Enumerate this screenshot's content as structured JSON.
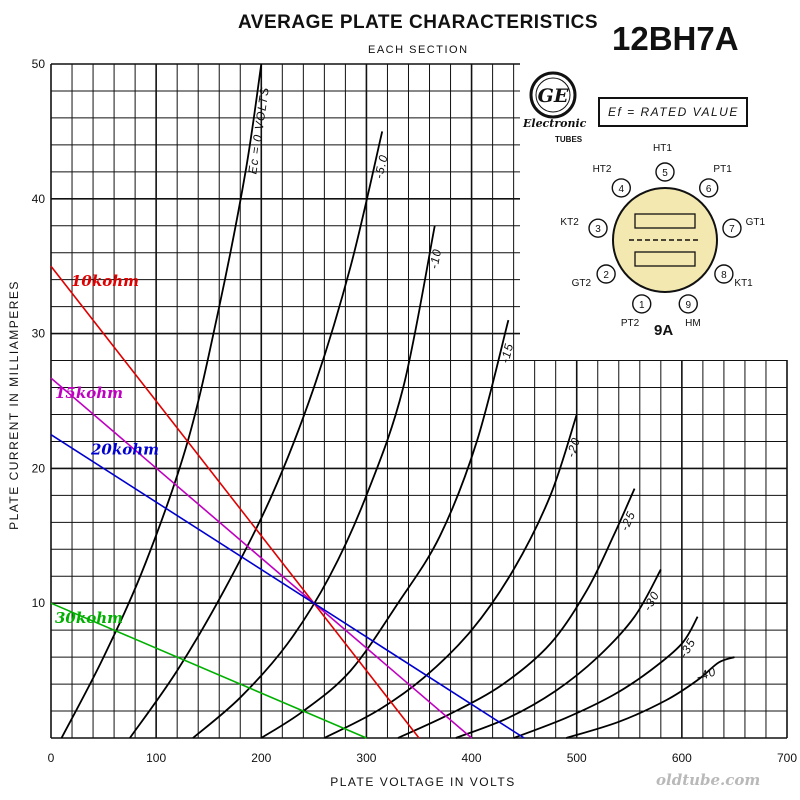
{
  "header": {
    "title": "AVERAGE PLATE CHARACTERISTICS",
    "subtitle": "EACH SECTION",
    "tube_type": "12BH7A"
  },
  "manufacturer": {
    "logo_text": "GE",
    "name": "Electronic",
    "sub": "TUBES"
  },
  "note": "Ef = RATED VALUE",
  "base": {
    "type": "9A",
    "pins": [
      {
        "num": "1",
        "label": "PT2"
      },
      {
        "num": "2",
        "label": "GT2"
      },
      {
        "num": "3",
        "label": "KT2"
      },
      {
        "num": "4",
        "label": "HT2"
      },
      {
        "num": "5",
        "label": "HT1"
      },
      {
        "num": "6",
        "label": "PT1"
      },
      {
        "num": "7",
        "label": "GT1"
      },
      {
        "num": "8",
        "label": "KT1"
      },
      {
        "num": "9",
        "label": "HM"
      }
    ]
  },
  "watermark": "oldtube.com",
  "colors": {
    "grid": "#111111",
    "curves": "#000000",
    "load_10k": "#e00000",
    "load_15k": "#c000c0",
    "load_20k": "#0000d0",
    "load_30k": "#00b000",
    "base_fill": "#f2e8b0"
  },
  "chart_data": {
    "type": "line",
    "xlabel": "PLATE VOLTAGE IN VOLTS",
    "ylabel": "PLATE CURRENT IN MILLIAMPERES",
    "xlim": [
      0,
      700
    ],
    "ylim": [
      0,
      50
    ],
    "x_ticks": [
      0,
      100,
      200,
      300,
      400,
      500,
      600,
      700
    ],
    "y_ticks": [
      10,
      20,
      30,
      40,
      50
    ],
    "grid": true,
    "curves": [
      {
        "label": "Ec = 0 VOLTS",
        "points": [
          [
            10,
            0
          ],
          [
            50,
            6
          ],
          [
            90,
            13
          ],
          [
            130,
            22
          ],
          [
            160,
            32
          ],
          [
            185,
            42
          ],
          [
            200,
            50
          ]
        ]
      },
      {
        "label": "-5.0",
        "points": [
          [
            75,
            0
          ],
          [
            120,
            5
          ],
          [
            165,
            11
          ],
          [
            210,
            18
          ],
          [
            250,
            26
          ],
          [
            285,
            35
          ],
          [
            315,
            45
          ]
        ]
      },
      {
        "label": "-10",
        "points": [
          [
            135,
            0
          ],
          [
            180,
            3
          ],
          [
            225,
            7
          ],
          [
            265,
            12
          ],
          [
            300,
            18
          ],
          [
            335,
            26
          ],
          [
            365,
            38
          ]
        ]
      },
      {
        "label": "-15",
        "points": [
          [
            200,
            0
          ],
          [
            240,
            2
          ],
          [
            285,
            5
          ],
          [
            330,
            10
          ],
          [
            370,
            15
          ],
          [
            405,
            22
          ],
          [
            435,
            31
          ]
        ]
      },
      {
        "label": "-20",
        "points": [
          [
            260,
            0
          ],
          [
            310,
            2
          ],
          [
            355,
            4.5
          ],
          [
            400,
            8
          ],
          [
            440,
            12.5
          ],
          [
            475,
            18
          ],
          [
            500,
            24
          ]
        ]
      },
      {
        "label": "-25",
        "points": [
          [
            330,
            0
          ],
          [
            380,
            1.8
          ],
          [
            430,
            4
          ],
          [
            475,
            7
          ],
          [
            510,
            11
          ],
          [
            535,
            15
          ],
          [
            555,
            18.5
          ]
        ]
      },
      {
        "label": "-30",
        "points": [
          [
            385,
            0
          ],
          [
            435,
            1.5
          ],
          [
            480,
            3.5
          ],
          [
            520,
            6
          ],
          [
            555,
            9
          ],
          [
            580,
            12.5
          ]
        ]
      },
      {
        "label": "-35",
        "points": [
          [
            440,
            0
          ],
          [
            490,
            1.5
          ],
          [
            535,
            3.2
          ],
          [
            570,
            5
          ],
          [
            600,
            7
          ],
          [
            615,
            9
          ]
        ]
      },
      {
        "label": "-40",
        "points": [
          [
            490,
            0
          ],
          [
            540,
            1.2
          ],
          [
            585,
            2.8
          ],
          [
            615,
            4.3
          ],
          [
            635,
            5.6
          ],
          [
            650,
            6
          ]
        ]
      }
    ],
    "load_lines": [
      {
        "name": "10kohm",
        "x": [
          0,
          350
        ],
        "y": [
          35,
          0
        ]
      },
      {
        "name": "15kohm",
        "x": [
          0,
          400
        ],
        "y": [
          26.7,
          0
        ]
      },
      {
        "name": "20kohm",
        "x": [
          0,
          450
        ],
        "y": [
          22.5,
          0
        ]
      },
      {
        "name": "30kohm",
        "x": [
          0,
          300
        ],
        "y": [
          10,
          0
        ]
      }
    ],
    "operating_point": {
      "x": 250,
      "y": 10
    }
  }
}
